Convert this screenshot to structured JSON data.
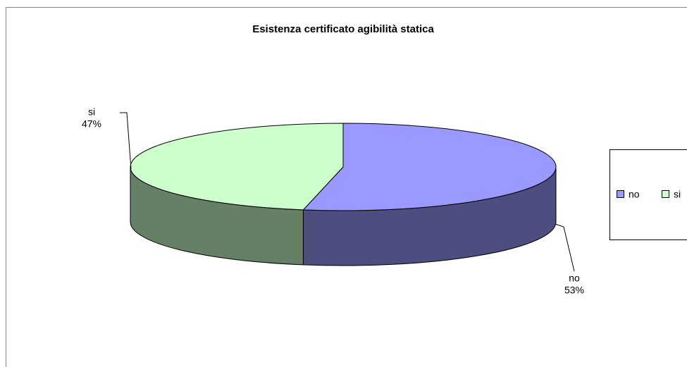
{
  "chart_data": {
    "type": "pie",
    "title": "Esistenza certificato agibilità statica",
    "categories": [
      "no",
      "si"
    ],
    "values": [
      53,
      47
    ],
    "value_labels": [
      "53%",
      "47%"
    ],
    "colors": [
      "#9999ff",
      "#ccffcc"
    ],
    "legend": "right"
  }
}
